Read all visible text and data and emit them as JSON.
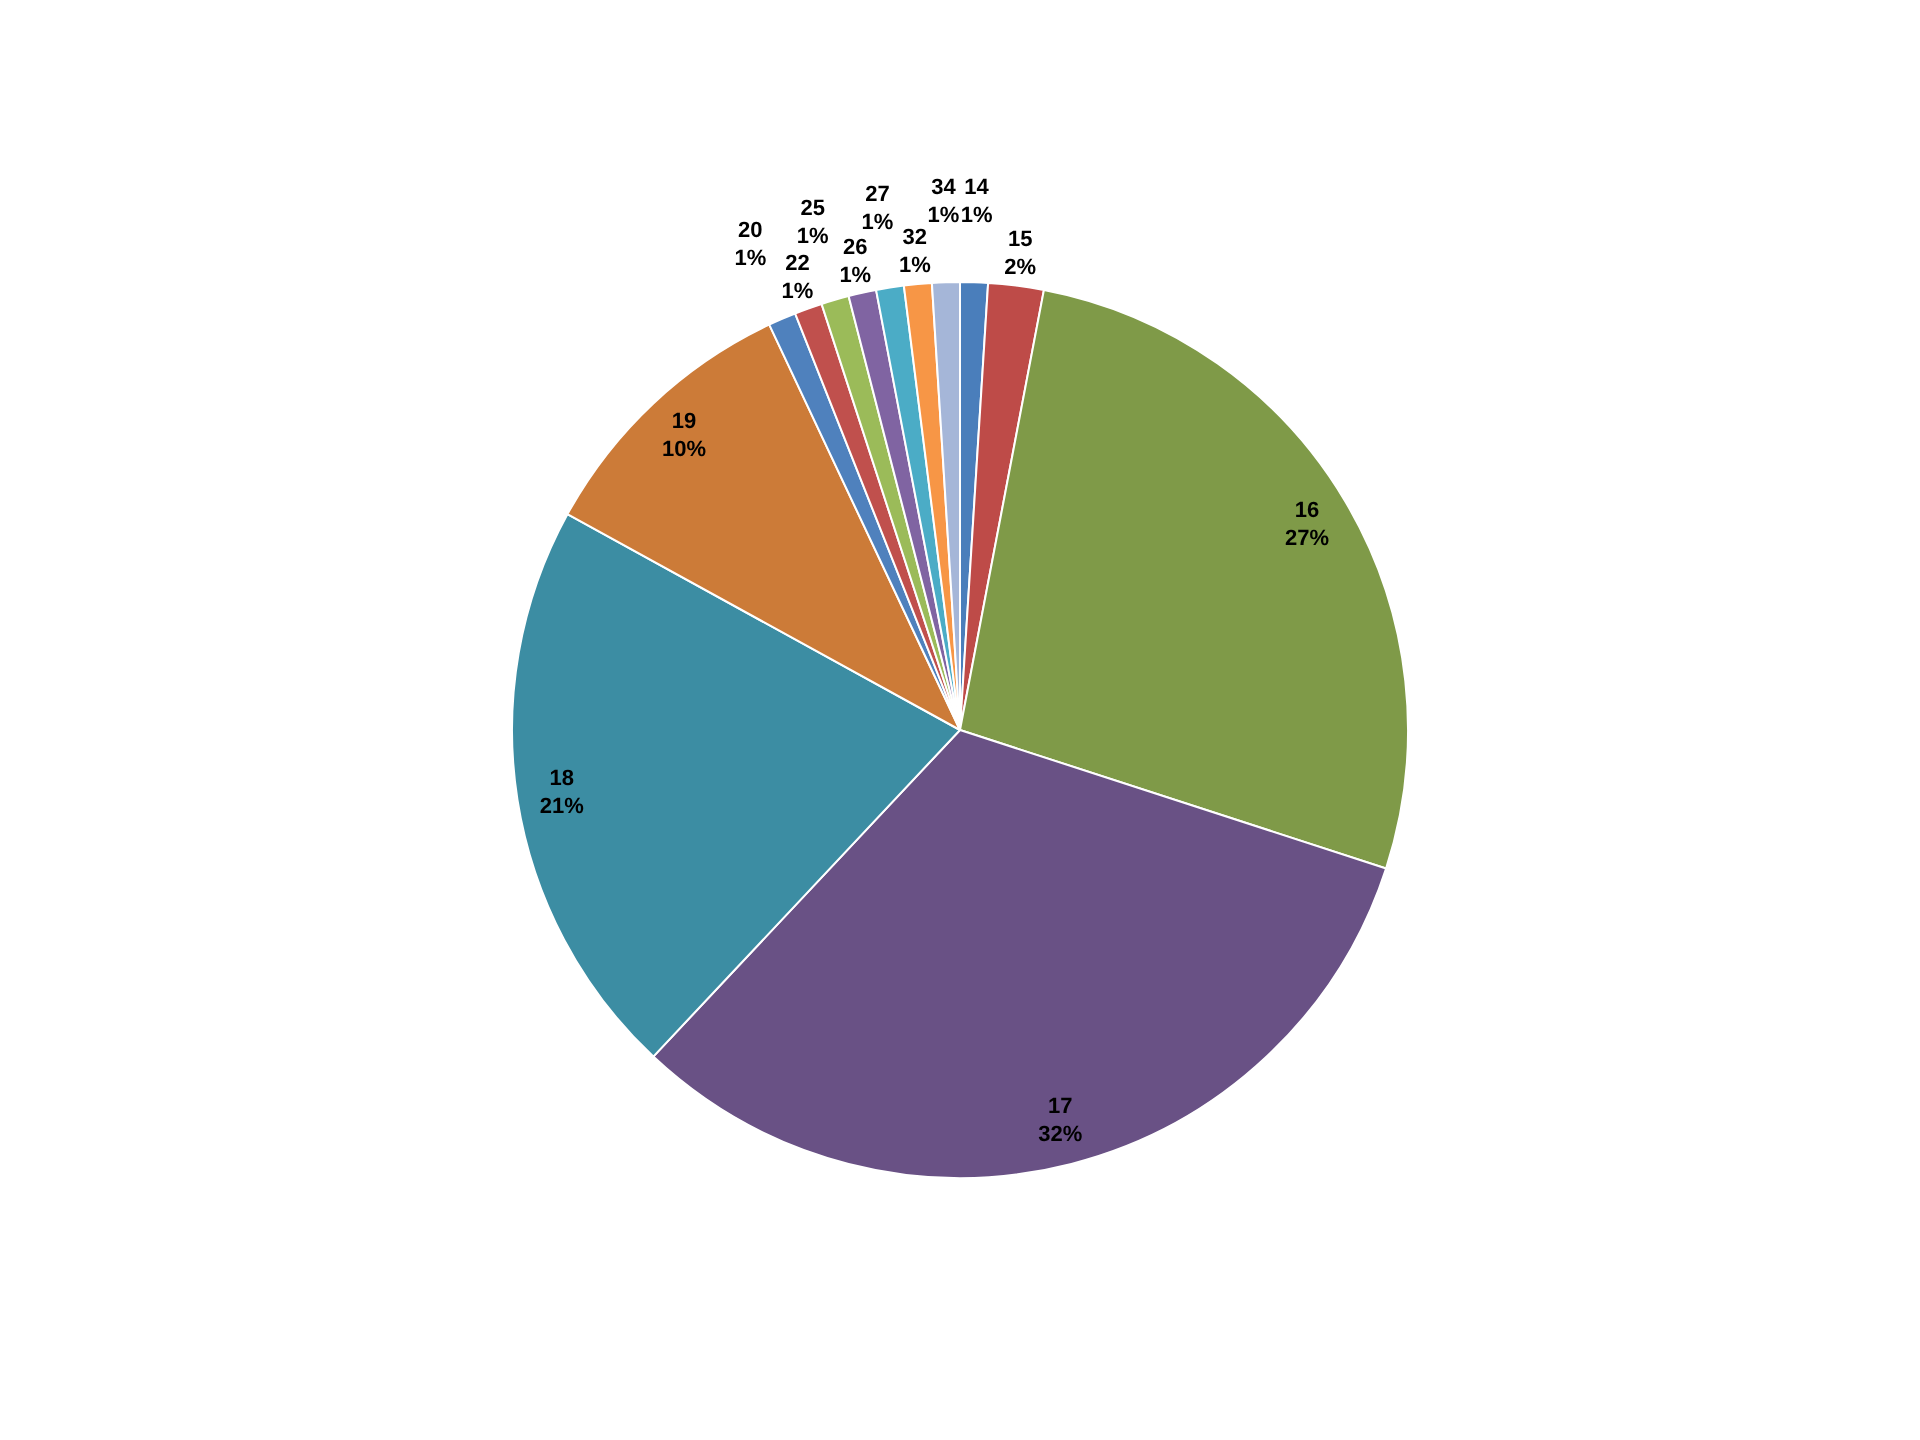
{
  "chart_data": {
    "type": "pie",
    "categories": [
      "14",
      "15",
      "16",
      "17",
      "18",
      "19",
      "20",
      "22",
      "25",
      "26",
      "27",
      "32",
      "34"
    ],
    "values": [
      1,
      2,
      27,
      32,
      21,
      10,
      1,
      1,
      1,
      1,
      1,
      1,
      1
    ],
    "value_labels": [
      "1%",
      "2%",
      "27%",
      "32%",
      "21%",
      "10%",
      "1%",
      "1%",
      "1%",
      "1%",
      "1%",
      "1%",
      "1%"
    ],
    "colors": [
      "#4a7ebb",
      "#be4b48",
      "#7f9a48",
      "#695185",
      "#3c8da3",
      "#cc7b38",
      "#4f81bd",
      "#c0504d",
      "#9bbb59",
      "#8064a2",
      "#4bacc6",
      "#f79646",
      "#a5b6d8"
    ],
    "legend": false
  }
}
